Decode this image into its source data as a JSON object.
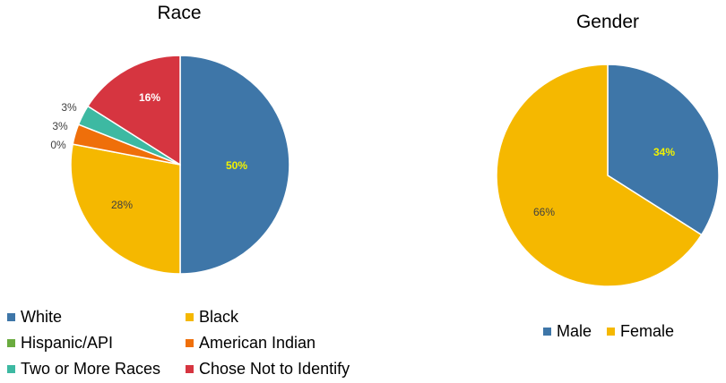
{
  "chart_data": [
    {
      "type": "pie",
      "title": "Race",
      "slices": [
        {
          "label": "White",
          "value": 50,
          "color": "#3e76a8",
          "data_label": "50%",
          "label_color": "#f2f200"
        },
        {
          "label": "Black",
          "value": 28,
          "color": "#f5b800",
          "data_label": "28%",
          "label_color": "#404040"
        },
        {
          "label": "Hispanic/API",
          "value": 0,
          "color": "#6aab3f",
          "data_label": "0%",
          "label_color": "#404040"
        },
        {
          "label": "American Indian",
          "value": 3,
          "color": "#ef6f0a",
          "data_label": "3%",
          "label_color": "#404040"
        },
        {
          "label": "Two or More Races",
          "value": 3,
          "color": "#3db9a2",
          "data_label": "3%",
          "label_color": "#404040"
        },
        {
          "label": "Chose Not to Identify",
          "value": 16,
          "color": "#d63540",
          "data_label": "16%",
          "label_color": "#ffffff"
        }
      ],
      "legend_position": "bottom"
    },
    {
      "type": "pie",
      "title": "Gender",
      "slices": [
        {
          "label": "Male",
          "value": 34,
          "color": "#3e76a8",
          "data_label": "34%",
          "label_color": "#f2f200"
        },
        {
          "label": "Female",
          "value": 66,
          "color": "#f5b800",
          "data_label": "66%",
          "label_color": "#404040"
        }
      ],
      "legend_position": "bottom"
    }
  ]
}
